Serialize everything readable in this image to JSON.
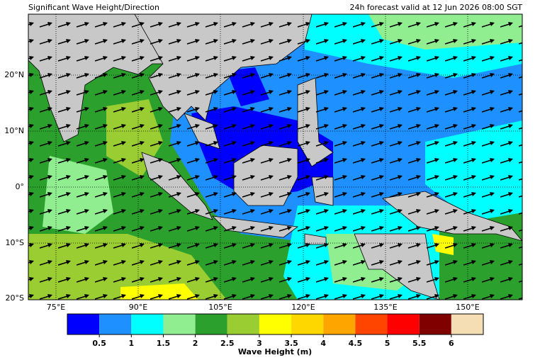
{
  "header": {
    "title": "Significant Wave Height/Direction",
    "subtitle": "24h forecast valid at 12 Jun 2026 08:00 SGT"
  },
  "map": {
    "lat_labels": [
      "20°N",
      "10°N",
      "0°",
      "10°S",
      "20°S"
    ],
    "lon_labels": [
      "75°E",
      "90°E",
      "105°E",
      "120°E",
      "135°E",
      "150°E"
    ]
  },
  "colorbar": {
    "label": "Wave Height (m)",
    "ticks": [
      0.5,
      1,
      1.5,
      2,
      2.5,
      3,
      3.5,
      4,
      4.5,
      5,
      5.5,
      6
    ],
    "colors": [
      "#0000ff",
      "#1e90ff",
      "#00ffff",
      "#90ee90",
      "#2ca02c",
      "#9acd32",
      "#ffff00",
      "#ffd700",
      "#ffa500",
      "#ff4500",
      "#ff0000",
      "#800000",
      "#f5deb3"
    ]
  }
}
